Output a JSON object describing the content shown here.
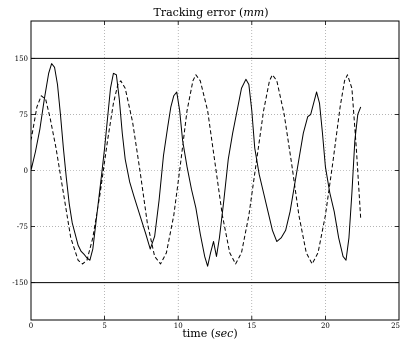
{
  "chart_data": {
    "type": "line",
    "title": "Tracking error",
    "title_unit": "mm",
    "xlabel": "time",
    "xlabel_unit": "sec",
    "ylabel": "",
    "xlim": [
      0,
      25
    ],
    "ylim": [
      -200,
      200
    ],
    "grid": true,
    "x_ticks": [
      "0",
      "5",
      "10",
      "15",
      "20",
      "25"
    ],
    "y_ticks": [
      "-150",
      "-75",
      "0",
      "75",
      "150"
    ],
    "reference_lines": [
      150,
      -150
    ],
    "series": [
      {
        "style": "solid",
        "points": [
          [
            0.0,
            0
          ],
          [
            0.3,
            25
          ],
          [
            0.6,
            55
          ],
          [
            0.9,
            95
          ],
          [
            1.2,
            130
          ],
          [
            1.4,
            143
          ],
          [
            1.6,
            138
          ],
          [
            1.8,
            115
          ],
          [
            2.0,
            75
          ],
          [
            2.2,
            30
          ],
          [
            2.4,
            -10
          ],
          [
            2.6,
            -45
          ],
          [
            2.8,
            -70
          ],
          [
            3.0,
            -85
          ],
          [
            3.2,
            -100
          ],
          [
            3.4,
            -108
          ],
          [
            3.6,
            -112
          ],
          [
            3.8,
            -117
          ],
          [
            4.0,
            -120
          ],
          [
            4.2,
            -105
          ],
          [
            4.5,
            -55
          ],
          [
            4.8,
            -5
          ],
          [
            5.0,
            30
          ],
          [
            5.2,
            70
          ],
          [
            5.4,
            110
          ],
          [
            5.6,
            130
          ],
          [
            5.8,
            128
          ],
          [
            6.0,
            95
          ],
          [
            6.2,
            50
          ],
          [
            6.4,
            15
          ],
          [
            6.7,
            -15
          ],
          [
            7.0,
            -35
          ],
          [
            7.4,
            -60
          ],
          [
            7.8,
            -85
          ],
          [
            8.1,
            -105
          ],
          [
            8.4,
            -88
          ],
          [
            8.7,
            -40
          ],
          [
            9.0,
            20
          ],
          [
            9.3,
            60
          ],
          [
            9.5,
            85
          ],
          [
            9.7,
            100
          ],
          [
            9.9,
            105
          ],
          [
            10.1,
            80
          ],
          [
            10.3,
            40
          ],
          [
            10.6,
            5
          ],
          [
            10.9,
            -25
          ],
          [
            11.2,
            -50
          ],
          [
            11.5,
            -85
          ],
          [
            11.8,
            -115
          ],
          [
            12.0,
            -128
          ],
          [
            12.2,
            -110
          ],
          [
            12.4,
            -95
          ],
          [
            12.6,
            -115
          ],
          [
            12.8,
            -90
          ],
          [
            13.1,
            -40
          ],
          [
            13.4,
            15
          ],
          [
            13.7,
            50
          ],
          [
            14.0,
            80
          ],
          [
            14.3,
            110
          ],
          [
            14.6,
            122
          ],
          [
            14.8,
            115
          ],
          [
            15.0,
            80
          ],
          [
            15.2,
            30
          ],
          [
            15.5,
            -5
          ],
          [
            15.8,
            -30
          ],
          [
            16.1,
            -55
          ],
          [
            16.4,
            -80
          ],
          [
            16.7,
            -95
          ],
          [
            17.0,
            -90
          ],
          [
            17.3,
            -80
          ],
          [
            17.6,
            -55
          ],
          [
            17.9,
            -20
          ],
          [
            18.2,
            15
          ],
          [
            18.5,
            50
          ],
          [
            18.8,
            72
          ],
          [
            19.0,
            75
          ],
          [
            19.2,
            90
          ],
          [
            19.4,
            105
          ],
          [
            19.6,
            90
          ],
          [
            19.8,
            50
          ],
          [
            20.0,
            5
          ],
          [
            20.3,
            -30
          ],
          [
            20.6,
            -55
          ],
          [
            20.9,
            -90
          ],
          [
            21.2,
            -115
          ],
          [
            21.4,
            -120
          ],
          [
            21.6,
            -90
          ],
          [
            21.8,
            -30
          ],
          [
            22.0,
            40
          ],
          [
            22.2,
            75
          ],
          [
            22.4,
            85
          ]
        ]
      },
      {
        "style": "dashed",
        "points": [
          [
            0.0,
            40
          ],
          [
            0.4,
            85
          ],
          [
            0.7,
            100
          ],
          [
            1.0,
            95
          ],
          [
            1.3,
            70
          ],
          [
            1.7,
            30
          ],
          [
            2.2,
            -30
          ],
          [
            2.7,
            -90
          ],
          [
            3.2,
            -120
          ],
          [
            3.5,
            -125
          ],
          [
            3.8,
            -120
          ],
          [
            4.2,
            -90
          ],
          [
            4.7,
            -30
          ],
          [
            5.2,
            40
          ],
          [
            5.6,
            90
          ],
          [
            5.9,
            115
          ],
          [
            6.1,
            120
          ],
          [
            6.4,
            110
          ],
          [
            6.9,
            65
          ],
          [
            7.4,
            0
          ],
          [
            7.9,
            -70
          ],
          [
            8.4,
            -115
          ],
          [
            8.8,
            -125
          ],
          [
            9.2,
            -110
          ],
          [
            9.7,
            -60
          ],
          [
            10.1,
            0
          ],
          [
            10.6,
            80
          ],
          [
            11.0,
            120
          ],
          [
            11.2,
            128
          ],
          [
            11.5,
            120
          ],
          [
            12.0,
            80
          ],
          [
            12.5,
            10
          ],
          [
            13.0,
            -60
          ],
          [
            13.5,
            -110
          ],
          [
            13.9,
            -125
          ],
          [
            14.3,
            -110
          ],
          [
            14.8,
            -60
          ],
          [
            15.3,
            10
          ],
          [
            15.8,
            80
          ],
          [
            16.2,
            120
          ],
          [
            16.4,
            128
          ],
          [
            16.7,
            120
          ],
          [
            17.2,
            75
          ],
          [
            17.7,
            10
          ],
          [
            18.2,
            -60
          ],
          [
            18.7,
            -110
          ],
          [
            19.1,
            -125
          ],
          [
            19.5,
            -110
          ],
          [
            20.0,
            -60
          ],
          [
            20.5,
            10
          ],
          [
            21.0,
            85
          ],
          [
            21.3,
            120
          ],
          [
            21.5,
            128
          ],
          [
            21.8,
            110
          ],
          [
            22.1,
            30
          ],
          [
            22.4,
            -65
          ]
        ]
      }
    ]
  }
}
